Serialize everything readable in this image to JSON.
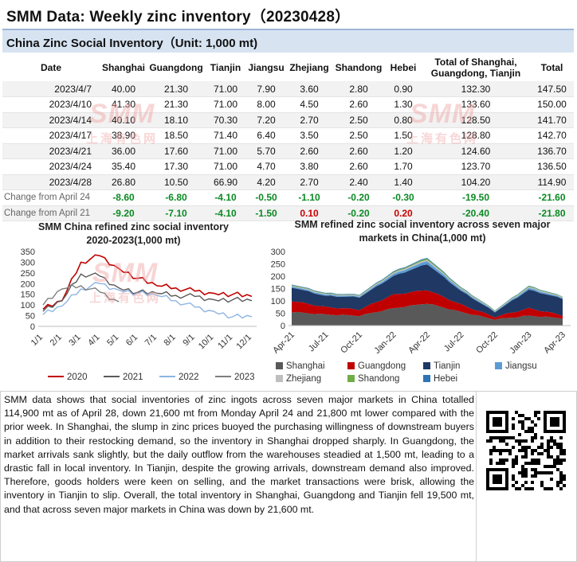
{
  "title": "SMM Data: Weekly zinc inventory（20230428）",
  "table_title": "China Zinc Social Inventory（Unit: 1,000 mt)",
  "table": {
    "headers": [
      "Date",
      "Shanghai",
      "Guangdong",
      "Tianjin",
      "Jiangsu",
      "Zhejiang",
      "Shandong",
      "Hebei",
      "Total of Shanghai, Guangdong, Tianjin",
      "Total"
    ],
    "rows": [
      [
        "2023/4/7",
        "40.00",
        "21.30",
        "71.00",
        "7.90",
        "3.60",
        "2.80",
        "0.90",
        "132.30",
        "147.50"
      ],
      [
        "2023/4/10",
        "41.30",
        "21.30",
        "71.00",
        "8.00",
        "4.50",
        "2.60",
        "1.30",
        "133.60",
        "150.00"
      ],
      [
        "2023/4/14",
        "40.10",
        "18.10",
        "70.30",
        "7.20",
        "2.70",
        "2.50",
        "0.80",
        "128.50",
        "141.70"
      ],
      [
        "2023/4/17",
        "38.90",
        "18.50",
        "71.40",
        "6.40",
        "3.50",
        "2.50",
        "1.50",
        "128.80",
        "142.70"
      ],
      [
        "2023/4/21",
        "36.00",
        "17.60",
        "71.00",
        "5.70",
        "2.60",
        "2.60",
        "1.20",
        "124.60",
        "136.70"
      ],
      [
        "2023/4/24",
        "35.40",
        "17.30",
        "71.00",
        "4.70",
        "3.80",
        "2.60",
        "1.70",
        "123.70",
        "136.50"
      ],
      [
        "2023/4/28",
        "26.80",
        "10.50",
        "66.90",
        "4.20",
        "2.70",
        "2.40",
        "1.40",
        "104.20",
        "114.90"
      ]
    ],
    "change_rows": [
      [
        "Change from April 24",
        "-8.60",
        "-6.80",
        "-4.10",
        "-0.50",
        "-1.10",
        "-0.20",
        "-0.30",
        "-19.50",
        "-21.60"
      ],
      [
        "Change from April 21",
        "-9.20",
        "-7.10",
        "-4.10",
        "-1.50",
        "0.10",
        "-0.20",
        "0.20",
        "-20.40",
        "-21.80"
      ]
    ]
  },
  "watermark": {
    "text": "SMM",
    "subtext": "上海有色网"
  },
  "chart_data": [
    {
      "type": "line",
      "title": "SMM China refined zinc social inventory 2020-2023(1,000 mt)",
      "categories": [
        "1/1",
        "2/1",
        "3/1",
        "4/1",
        "5/1",
        "6/1",
        "7/1",
        "8/1",
        "9/1",
        "10/1",
        "11/1",
        "12/1"
      ],
      "ylim": [
        0,
        350
      ],
      "yticks": [
        "0",
        "50",
        "100",
        "150",
        "200",
        "250",
        "300",
        "350"
      ],
      "legend_position": "bottom",
      "series": [
        {
          "name": "2020",
          "color": "#c00000",
          "values": [
            80,
            120,
            300,
            330,
            270,
            225,
            190,
            180,
            165,
            155,
            150,
            140
          ]
        },
        {
          "name": "2021",
          "color": "#595959",
          "values": [
            70,
            120,
            245,
            235,
            180,
            160,
            155,
            145,
            140,
            125,
            125,
            120
          ]
        },
        {
          "name": "2022",
          "color": "#8db4e2",
          "values": [
            55,
            95,
            175,
            200,
            170,
            155,
            145,
            120,
            90,
            70,
            45,
            45
          ]
        },
        {
          "name": "2023",
          "color": "#7f7f7f",
          "values": [
            100,
            175,
            190,
            160,
            115,
            null,
            null,
            null,
            null,
            null,
            null,
            null
          ]
        }
      ]
    },
    {
      "type": "area",
      "title": "SMM refined zinc social inventory across seven major markets in China(1,000 mt)",
      "categories": [
        "Apr-21",
        "Jul-21",
        "Oct-21",
        "Jan-22",
        "Apr-22",
        "Jul-22",
        "Oct-22",
        "Jan-23",
        "Apr-23"
      ],
      "ylim": [
        0,
        300
      ],
      "yticks": [
        "0",
        "50",
        "100",
        "150",
        "200",
        "250",
        "300"
      ],
      "legend_position": "bottom",
      "series": [
        {
          "name": "Shanghai",
          "color": "#595959",
          "values": [
            55,
            45,
            40,
            70,
            90,
            55,
            25,
            40,
            30
          ]
        },
        {
          "name": "Guangdong",
          "color": "#c00000",
          "values": [
            45,
            30,
            25,
            55,
            55,
            30,
            10,
            30,
            12
          ]
        },
        {
          "name": "Tianjin",
          "color": "#1f3864",
          "values": [
            55,
            45,
            50,
            75,
            105,
            55,
            20,
            75,
            67
          ]
        },
        {
          "name": "Jiangsu",
          "color": "#5b9bd5",
          "values": [
            5,
            5,
            4,
            8,
            12,
            6,
            3,
            7,
            4
          ]
        },
        {
          "name": "Zhejiang",
          "color": "#bfbfbf",
          "values": [
            3,
            3,
            3,
            5,
            6,
            4,
            2,
            4,
            3
          ]
        },
        {
          "name": "Shandong",
          "color": "#70ad47",
          "values": [
            3,
            2,
            2,
            3,
            5,
            3,
            2,
            3,
            2
          ]
        },
        {
          "name": "Hebei",
          "color": "#2e75b6",
          "values": [
            2,
            2,
            2,
            3,
            3,
            2,
            1,
            2,
            1
          ]
        }
      ]
    }
  ],
  "analysis": "SMM data shows that social inventories of zinc ingots across seven major markets in China totalled 114,900 mt as of April 28, down 21,600 mt from Monday April 24 and 21,800 mt lower compared with the prior week. In Shanghai, the slump in zinc prices buoyed the purchasing willingness of downstream buyers in addition to their restocking demand, so the inventory in Shanghai dropped sharply. In Guangdong, the market arrivals sank slightly, but the daily outflow from the warehouses steadied at 1,500 mt, leading to a drastic fall in local inventory. In Tianjin, despite the growing arrivals, downstream demand also improved. Therefore, goods holders were keen on selling, and the market transactions were brisk, allowing the inventory in Tianjin to slip. Overall, the total inventory in Shanghai, Guangdong and Tianjin fell 19,500 mt, and that across seven major markets in China was down by 21,600 mt."
}
